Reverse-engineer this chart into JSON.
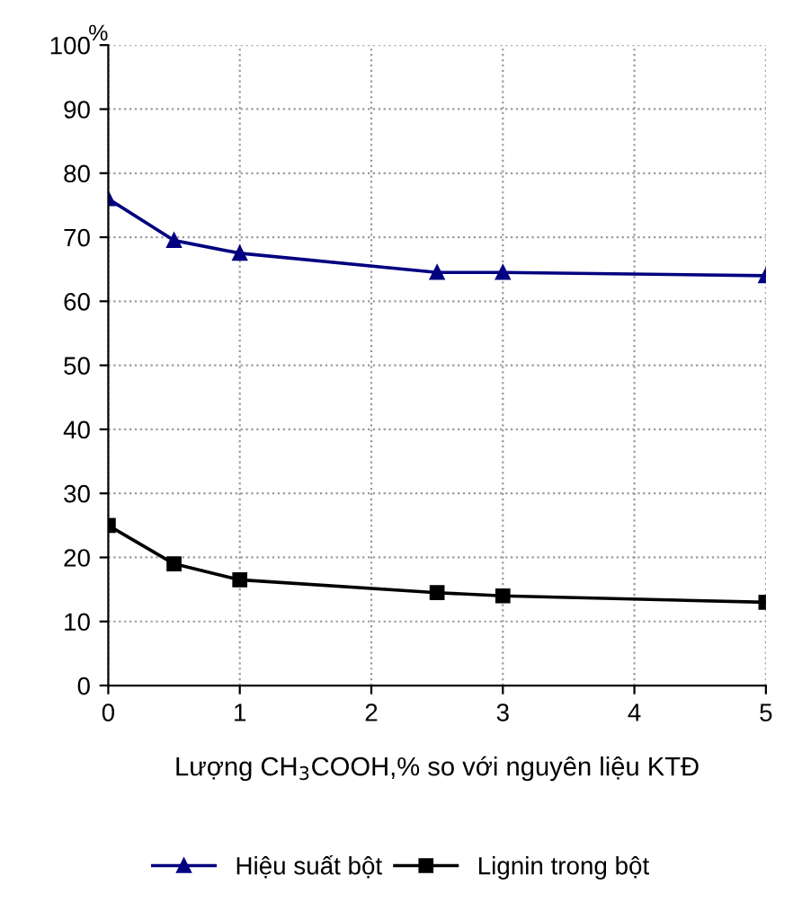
{
  "chart_data": {
    "type": "line",
    "xlabel": "Lượng CH$_{3}$COOH,% so với nguyên liệu KTĐ",
    "ylabel": "%",
    "x": [
      0,
      0.5,
      1,
      2.5,
      3,
      5
    ],
    "series": [
      {
        "name": "Hiệu suất bột",
        "color": "#000080",
        "marker": "triangle",
        "values": [
          76,
          69.5,
          67.5,
          64.5,
          64.5,
          64
        ]
      },
      {
        "name": "Lignin trong bột",
        "color": "#000000",
        "marker": "square",
        "values": [
          25,
          19,
          16.5,
          14.5,
          14,
          13
        ]
      }
    ],
    "xlim": [
      0,
      5
    ],
    "xticks": [
      0,
      1,
      2,
      3,
      4,
      5
    ],
    "ylim": [
      0,
      100
    ],
    "yticks": [
      0,
      10,
      20,
      30,
      40,
      50,
      60,
      70,
      80,
      90,
      100
    ],
    "grid": true,
    "legend": "bottom",
    "line_style": "solid"
  }
}
